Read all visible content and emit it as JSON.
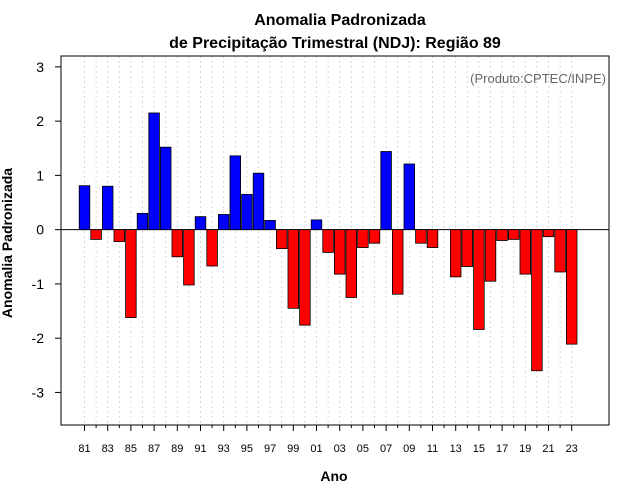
{
  "chart_data": {
    "type": "bar",
    "title": "Anomalia Padronizada",
    "subtitle": "de Precipitação Trimestral (NDJ): Região 89",
    "xlabel": "Ano",
    "ylabel": "Anomalia Padronizada",
    "credit": "(Produto:CPTEC/INPE)",
    "ylim": [
      -3.6,
      3.2
    ],
    "yticks": [
      "3",
      "2",
      "1",
      "0",
      "-1",
      "-2",
      "-3"
    ],
    "ytick_values": [
      3,
      2,
      1,
      0,
      -1,
      -2,
      -3
    ],
    "tick_labels": [
      "81",
      "83",
      "85",
      "87",
      "89",
      "91",
      "93",
      "95",
      "97",
      "99",
      "01",
      "03",
      "05",
      "07",
      "09",
      "11",
      "13",
      "15",
      "17",
      "19",
      "21",
      "23"
    ],
    "categories": [
      "1981",
      "1982",
      "1983",
      "1984",
      "1985",
      "1986",
      "1987",
      "1988",
      "1989",
      "1990",
      "1991",
      "1992",
      "1993",
      "1994",
      "1995",
      "1996",
      "1997",
      "1998",
      "1999",
      "2000",
      "2001",
      "2002",
      "2003",
      "2004",
      "2005",
      "2006",
      "2007",
      "2008",
      "2009",
      "2010",
      "2011",
      "2012",
      "2013",
      "2014",
      "2015",
      "2016",
      "2017",
      "2018",
      "2019",
      "2020",
      "2021",
      "2022",
      "2023"
    ],
    "values": [
      0.81,
      -0.18,
      0.8,
      -0.22,
      -1.62,
      0.3,
      2.15,
      1.52,
      -0.5,
      -1.02,
      0.24,
      -0.67,
      0.28,
      1.36,
      0.65,
      1.04,
      0.17,
      -0.35,
      -1.45,
      -1.76,
      0.18,
      -0.42,
      -0.82,
      -1.25,
      -0.33,
      -0.25,
      1.44,
      -1.19,
      1.21,
      -0.25,
      -0.33,
      0.0,
      -0.87,
      -0.68,
      -1.84,
      -0.95,
      -0.2,
      -0.18,
      -0.82,
      -2.6,
      -0.13,
      -0.78,
      -2.11
    ],
    "colors": {
      "positive": "#0000ff",
      "negative": "#ff0000"
    },
    "grid": "vertical-dotted"
  }
}
